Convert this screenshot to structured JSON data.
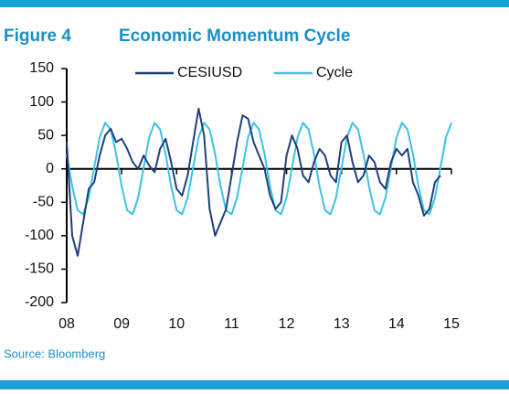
{
  "chart_data": {
    "type": "line",
    "figure": "Figure 4",
    "title": "Economic Momentum Cycle",
    "source": "Source: Bloomberg",
    "x": [
      8.0,
      8.1,
      8.2,
      8.3,
      8.4,
      8.5,
      8.6,
      8.7,
      8.8,
      8.9,
      9.0,
      9.1,
      9.2,
      9.3,
      9.4,
      9.5,
      9.6,
      9.7,
      9.8,
      9.9,
      10.0,
      10.1,
      10.2,
      10.3,
      10.4,
      10.5,
      10.6,
      10.7,
      10.8,
      10.9,
      11.0,
      11.1,
      11.2,
      11.3,
      11.4,
      11.5,
      11.6,
      11.7,
      11.8,
      11.9,
      12.0,
      12.1,
      12.2,
      12.3,
      12.4,
      12.5,
      12.6,
      12.7,
      12.8,
      12.9,
      13.0,
      13.1,
      13.2,
      13.3,
      13.4,
      13.5,
      13.6,
      13.7,
      13.8,
      13.9,
      14.0,
      14.1,
      14.2,
      14.3,
      14.4,
      14.5,
      14.6,
      14.7,
      14.8,
      14.9,
      15.0
    ],
    "series": [
      {
        "name": "CESIUSD",
        "color": "#1f3f7a",
        "values": [
          40,
          -100,
          -130,
          -80,
          -30,
          -20,
          20,
          50,
          60,
          40,
          45,
          30,
          10,
          0,
          20,
          5,
          -5,
          30,
          45,
          10,
          -30,
          -40,
          -10,
          40,
          90,
          50,
          -60,
          -100,
          -80,
          -60,
          -10,
          40,
          80,
          75,
          40,
          20,
          0,
          -40,
          -60,
          -50,
          20,
          50,
          30,
          -10,
          -20,
          10,
          30,
          20,
          -10,
          -20,
          40,
          50,
          10,
          -20,
          -10,
          20,
          10,
          -20,
          -30,
          10,
          30,
          20,
          30,
          -20,
          -40,
          -70,
          -60,
          -20,
          -10,
          null,
          null
        ]
      },
      {
        "name": "Cycle",
        "color": "#3cc3e6",
        "values": [
          22,
          -26,
          -62,
          -68,
          -43,
          2,
          47,
          69,
          59,
          22,
          -26,
          -62,
          -68,
          -43,
          2,
          47,
          69,
          59,
          22,
          -26,
          -62,
          -68,
          -43,
          2,
          47,
          69,
          59,
          22,
          -26,
          -62,
          -68,
          -43,
          2,
          47,
          69,
          59,
          22,
          -26,
          -62,
          -68,
          -43,
          2,
          47,
          69,
          59,
          22,
          -26,
          -62,
          -68,
          -43,
          2,
          47,
          69,
          59,
          22,
          -26,
          -62,
          -68,
          -43,
          2,
          47,
          69,
          59,
          22,
          -26,
          -62,
          -68,
          -43,
          2,
          47,
          69
        ]
      }
    ],
    "xlim": [
      8,
      15
    ],
    "xticks": [
      {
        "value": 8,
        "label": "08"
      },
      {
        "value": 9,
        "label": "09"
      },
      10,
      11,
      12,
      13,
      14,
      15
    ],
    "ylim": [
      -200,
      150
    ],
    "yticks": [
      -200,
      -150,
      -100,
      -50,
      0,
      50,
      100,
      150
    ]
  }
}
